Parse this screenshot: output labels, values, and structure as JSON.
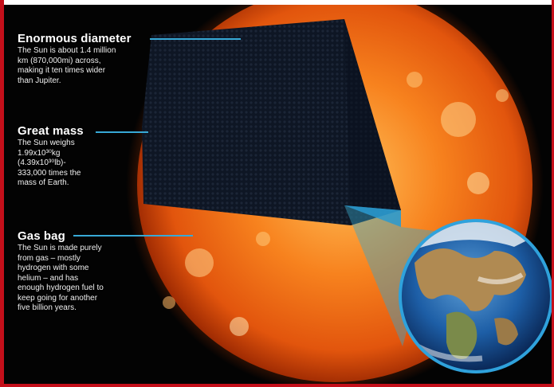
{
  "callouts": [
    {
      "heading": "Enormous diameter",
      "lines": [
        "The Sun is about 1.4 million",
        "km (870,000mi) across,",
        "making it ten times wider",
        "than Jupiter."
      ]
    },
    {
      "heading": "Great mass",
      "lines": [
        "The Sun weighs",
        "1.99x10³⁰kg",
        "(4.39x10³⁰lb)-",
        "333,000 times the",
        "mass of Earth."
      ]
    },
    {
      "heading": "Gas bag",
      "lines": [
        "The Sun is made purely",
        "from gas – mostly",
        "hydrogen with some",
        "helium – and has",
        "enough hydrogen fuel to",
        "keep going for another",
        "five billion years."
      ]
    }
  ],
  "colors": {
    "sun_core": "#ffb347",
    "sun_mid": "#f06a12",
    "sun_edge": "#a82a00",
    "cutaway": "#0d1522",
    "pointer": "#37a9d6",
    "earth_ring": "#2fa2dc",
    "border": "#c40f1a"
  },
  "icons": [
    "sun-illustration",
    "earth-illustration"
  ]
}
